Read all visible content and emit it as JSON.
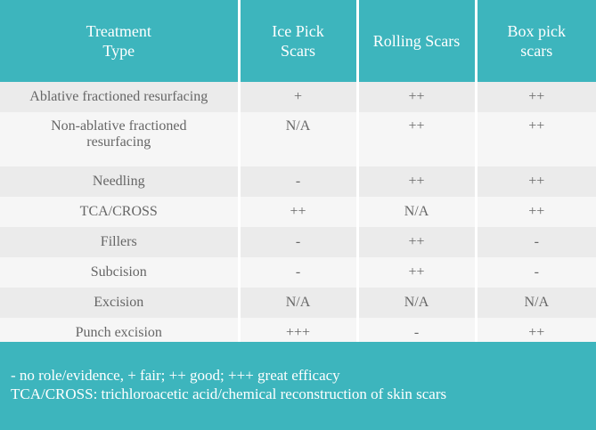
{
  "table": {
    "header": [
      "Treatment Type",
      "Ice Pick Scars",
      "Rolling Scars",
      "Box pick scars"
    ],
    "rows": [
      [
        "Ablative fractioned resurfacing",
        "+",
        "++",
        "++"
      ],
      [
        "Non-ablative fractioned resurfacing",
        "N/A",
        "++",
        "++"
      ],
      [
        "Needling",
        "-",
        "++",
        "++"
      ],
      [
        "TCA/CROSS",
        "++",
        "N/A",
        "++"
      ],
      [
        "Fillers",
        "-",
        "++",
        "-"
      ],
      [
        "Subcision",
        "-",
        "++",
        "-"
      ],
      [
        "Excision",
        "N/A",
        "N/A",
        "N/A"
      ],
      [
        "Punch excision",
        "+++",
        "-",
        "++"
      ]
    ]
  },
  "footer": [
    "- no role/evidence, + fair; ++ good; +++ great efficacy",
    "TCA/CROSS: trichloroacetic acid/chemical reconstruction of skin scars"
  ]
}
